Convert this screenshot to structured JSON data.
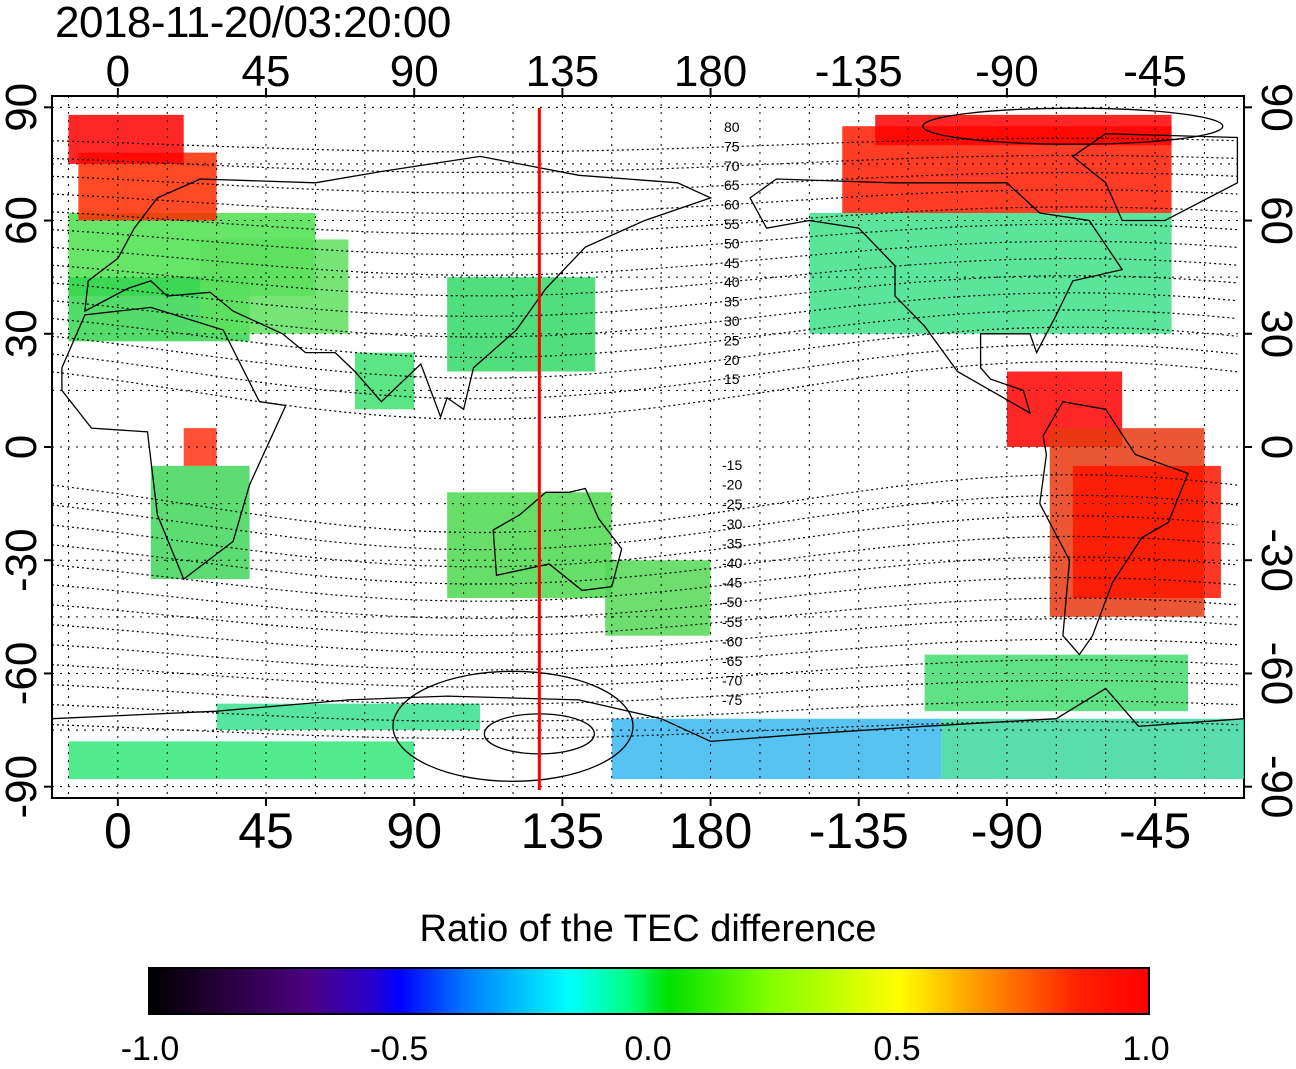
{
  "timestamp": "2018-11-20/03:20:00",
  "map": {
    "top_lon_labels": [
      "0",
      "45",
      "90",
      "135",
      "180",
      "-135",
      "-90",
      "-45"
    ],
    "bottom_lon_labels": [
      "0",
      "45",
      "90",
      "135",
      "180",
      "-135",
      "-90",
      "-45"
    ],
    "left_lat_labels": [
      "90",
      "60",
      "30",
      "0",
      "-30",
      "-60",
      "-90"
    ],
    "right_lat_labels": [
      "90",
      "60",
      "30",
      "0",
      "-30",
      "-60",
      "-90"
    ],
    "lon_ticks": [
      0,
      45,
      90,
      135,
      180,
      225,
      270,
      315
    ],
    "lat_ticks": [
      90,
      60,
      30,
      0,
      -30,
      -60,
      -90
    ],
    "lon_range": [
      -20,
      342
    ],
    "lat_range": [
      -93,
      93
    ],
    "meridian_line_lon": 128,
    "meridian_line_color": "#ff0000",
    "north_contour_labels": [
      "80",
      "75",
      "70",
      "65",
      "60",
      "55",
      "50",
      "45",
      "40",
      "35",
      "30",
      "25",
      "20",
      "15"
    ],
    "south_contour_labels": [
      "-15",
      "-20",
      "-25",
      "-30",
      "-35",
      "-40",
      "-45",
      "-50",
      "-55",
      "-60",
      "-65",
      "-70",
      "-75"
    ]
  },
  "colorbar": {
    "title": "Ratio of the TEC difference",
    "tick_labels": [
      "-1.0",
      "-0.5",
      "0.0",
      "0.5",
      "1.0"
    ],
    "tick_values": [
      -1.0,
      -0.5,
      0.0,
      0.5,
      1.0
    ],
    "range": [
      -1.0,
      1.0
    ],
    "colors": [
      "#000000",
      "#4b0082",
      "#0000ff",
      "#00ffff",
      "#00e000",
      "#ffff00",
      "#ff8000",
      "#ff0000"
    ]
  }
}
